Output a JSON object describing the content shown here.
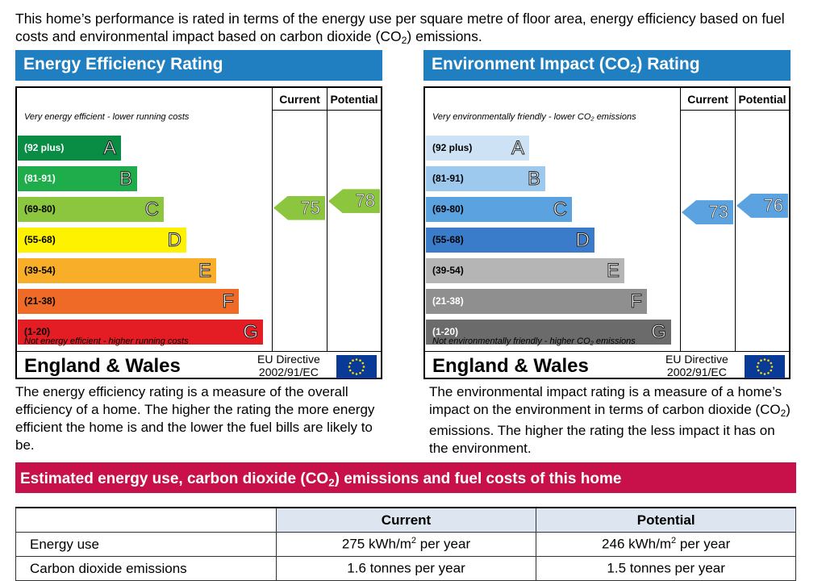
{
  "intro": {
    "part1": "This home’s performance is rated in terms of the energy use per square metre of floor area, energy efficiency based on fuel costs and environmental impact based on carbon dioxide (CO",
    "sub": "2",
    "part2": ") emissions."
  },
  "panels": [
    {
      "title_a": "Energy Efficiency Rating",
      "title_sub": "",
      "title_b": "",
      "header_current": "Current",
      "header_potential": "Potential",
      "top_note": "Very energy efficient - lower running costs",
      "bottom_note": "Not energy efficient - higher running costs",
      "bands": [
        {
          "range": "(92 plus)",
          "letter": "A",
          "color": "#098c44",
          "text_color": "#ffffff"
        },
        {
          "range": "(81-91)",
          "letter": "B",
          "color": "#1fad4b",
          "text_color": "#ffffff"
        },
        {
          "range": "(69-80)",
          "letter": "C",
          "color": "#8cc63f",
          "text_color": "#000000"
        },
        {
          "range": "(55-68)",
          "letter": "D",
          "color": "#fff200",
          "text_color": "#000000"
        },
        {
          "range": "(39-54)",
          "letter": "E",
          "color": "#f9ae2a",
          "text_color": "#000000"
        },
        {
          "range": "(21-38)",
          "letter": "F",
          "color": "#ef6a27",
          "text_color": "#000000"
        },
        {
          "range": "(1-20)",
          "letter": "G",
          "color": "#e31d23",
          "text_color": "#000000"
        }
      ],
      "current": {
        "value": "75",
        "color": "#8cc63f"
      },
      "potential": {
        "value": "78",
        "color": "#8cc63f"
      },
      "footer_title": "England & Wales",
      "footer_eu_line1": "EU Directive",
      "footer_eu_line2": "2002/91/EC",
      "description": "The energy efficiency rating is a measure of the overall efficiency of a home. The higher the rating the more energy efficient the home is and the lower the fuel bills are likely to be."
    },
    {
      "title_a": "Environment Impact (CO",
      "title_sub": "2",
      "title_b": ") Rating",
      "header_current": "Current",
      "header_potential": "Potential",
      "top_note": "Very environmentally friendly - lower CO₂ emissions",
      "bottom_note": "Not environmentally friendly - higher CO₂ emissions",
      "bands": [
        {
          "range": "(92 plus)",
          "letter": "A",
          "color": "#cde3f5",
          "text_color": "#000000"
        },
        {
          "range": "(81-91)",
          "letter": "B",
          "color": "#9dc9ef",
          "text_color": "#000000"
        },
        {
          "range": "(69-80)",
          "letter": "C",
          "color": "#5aa2e0",
          "text_color": "#000000"
        },
        {
          "range": "(55-68)",
          "letter": "D",
          "color": "#3a7cc9",
          "text_color": "#000000"
        },
        {
          "range": "(39-54)",
          "letter": "E",
          "color": "#b5b5b5",
          "text_color": "#000000"
        },
        {
          "range": "(21-38)",
          "letter": "F",
          "color": "#8f8f8f",
          "text_color": "#ffffff"
        },
        {
          "range": "(1-20)",
          "letter": "G",
          "color": "#6b6b6b",
          "text_color": "#ffffff"
        }
      ],
      "current": {
        "value": "73",
        "color": "#5aa2e0"
      },
      "potential": {
        "value": "76",
        "color": "#5aa2e0"
      },
      "footer_title": "England & Wales",
      "footer_eu_line1": "EU Directive",
      "footer_eu_line2": "2002/91/EC",
      "description_a": "The environmental impact rating is a measure of a home’s impact on the environment in terms of carbon dioxide (CO",
      "description_sub": "2",
      "description_b": ") emissions. The higher the rating the less impact it has on the environment."
    }
  ],
  "estimate": {
    "title_a": "Estimated energy use, carbon dioxide (CO",
    "title_sub": "2",
    "title_b": ") emissions and fuel costs of this home",
    "col_current": "Current",
    "col_potential": "Potential",
    "rows": [
      {
        "label": "Energy use",
        "current_a": "275 kWh/m",
        "current_sup": "2",
        "current_b": " per year",
        "potential_a": "246 kWh/m",
        "potential_sup": "2",
        "potential_b": " per year"
      },
      {
        "label": "Carbon dioxide emissions",
        "current_a": "1.6 tonnes per year",
        "current_sup": "",
        "current_b": "",
        "potential_a": "1.5 tonnes per year",
        "potential_sup": "",
        "potential_b": ""
      }
    ]
  }
}
